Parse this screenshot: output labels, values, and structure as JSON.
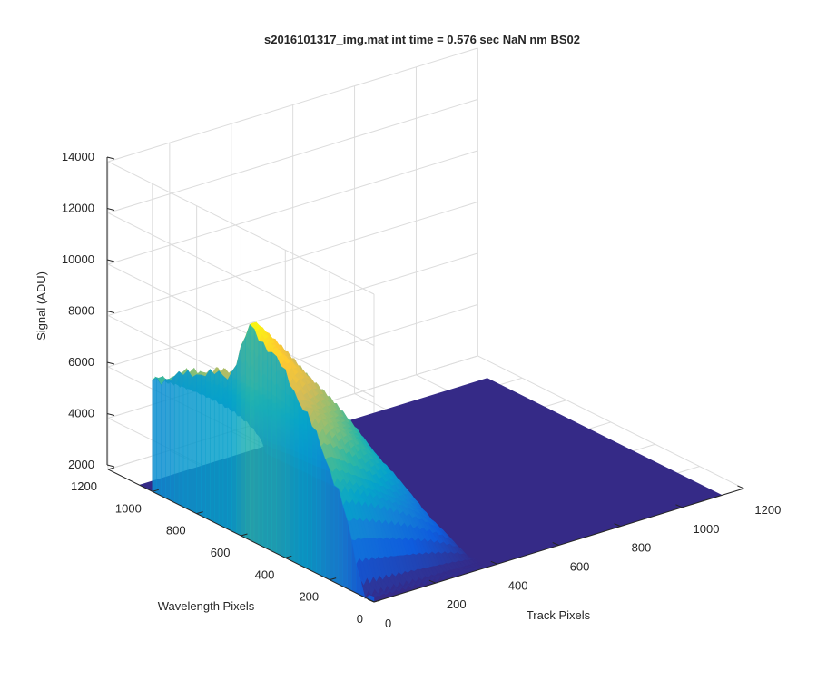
{
  "chart_data": {
    "type": "surface",
    "title": "s2016101317_img.mat int time = 0.576 sec  NaN nm BS02",
    "xlabel": "Track Pixels",
    "ylabel": "Wavelength Pixels",
    "zlabel": "Signal (ADU)",
    "xlim": [
      0,
      1200
    ],
    "ylim": [
      0,
      1200
    ],
    "zlim": [
      2000,
      14000
    ],
    "x_ticks": [
      "0",
      "200",
      "400",
      "600",
      "800",
      "1000",
      "1200"
    ],
    "y_ticks": [
      "0",
      "200",
      "400",
      "600",
      "800",
      "1000",
      "1200"
    ],
    "z_ticks": [
      "2000",
      "4000",
      "6000",
      "8000",
      "10000",
      "12000",
      "14000"
    ],
    "grid": true,
    "colormap": "parula",
    "colormap_stops": [
      "#352a87",
      "#0f5cdd",
      "#1481d6",
      "#06a4ca",
      "#2eb7a4",
      "#87bf77",
      "#d1bb59",
      "#fec832",
      "#f9fb0e"
    ],
    "background_level": 2000,
    "peak_value": 10500,
    "signal_track_range": [
      0,
      370
    ],
    "signal_wavelength_range": [
      0,
      1000
    ],
    "surface_extent_track": [
      0,
      1130
    ],
    "surface_extent_wavelength": [
      0,
      1060
    ],
    "profile_samples": [
      {
        "track": 0,
        "wavelength": 1000,
        "value": 6300
      },
      {
        "track": 0,
        "wavelength": 800,
        "value": 7500
      },
      {
        "track": 0,
        "wavelength": 650,
        "value": 8000
      },
      {
        "track": 0,
        "wavelength": 560,
        "value": 10300
      },
      {
        "track": 0,
        "wavelength": 450,
        "value": 9700
      },
      {
        "track": 0,
        "wavelength": 300,
        "value": 8000
      },
      {
        "track": 0,
        "wavelength": 150,
        "value": 5500
      },
      {
        "track": 0,
        "wavelength": 50,
        "value": 2200
      }
    ]
  }
}
